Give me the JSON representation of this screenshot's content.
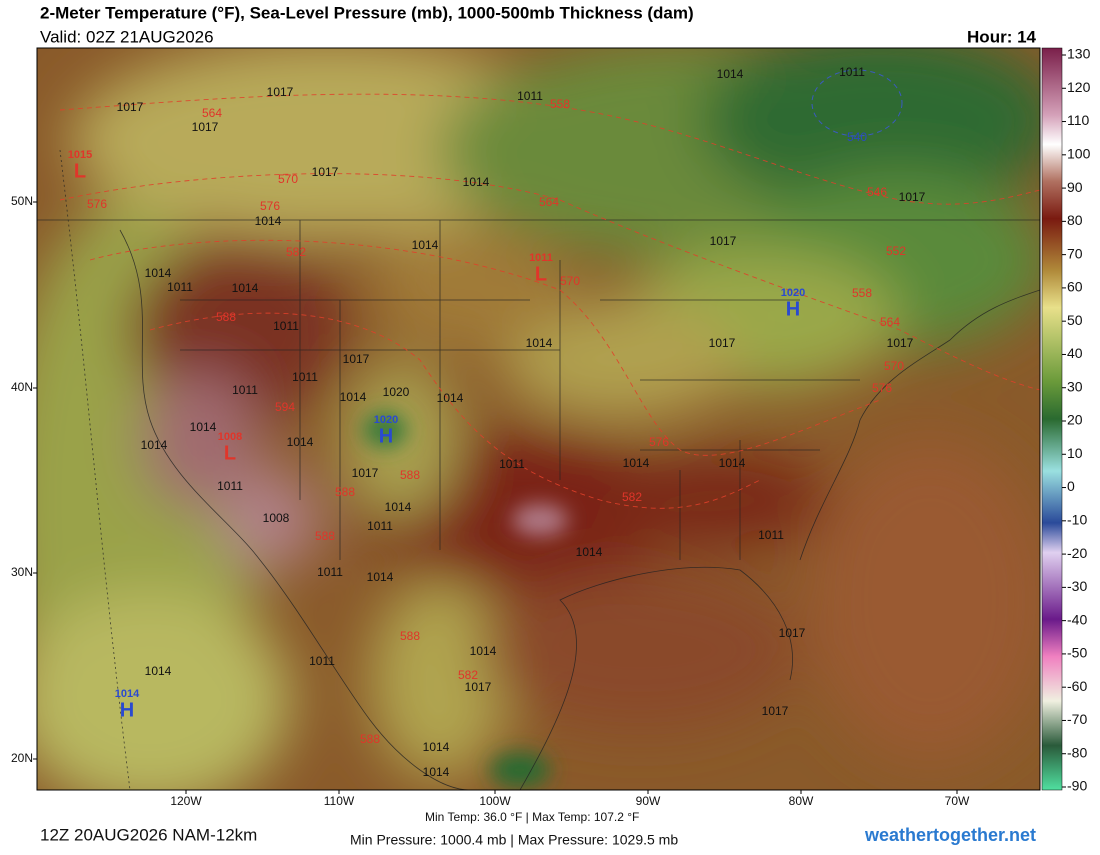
{
  "header": {
    "title": "2-Meter Temperature (°F), Sea-Level Pressure (mb), 1000-500mb Thickness (dam)",
    "valid": "Valid: 02Z 21AUG2026",
    "hour": "Hour: 14"
  },
  "map": {
    "latitude_labels": [
      "50N",
      "40N",
      "30N",
      "20N"
    ],
    "longitude_labels": [
      "120W",
      "110W",
      "100W",
      "90W",
      "80W",
      "70W"
    ],
    "isobar_labels": [
      "1017",
      "1017",
      "1017",
      "1011",
      "1014",
      "1011",
      "1017",
      "1014",
      "1014",
      "1014",
      "1017",
      "1017",
      "1014",
      "1011",
      "1014",
      "1011",
      "1014",
      "1017",
      "1017",
      "1017",
      "1011",
      "1011",
      "1014",
      "1020",
      "1014",
      "1014",
      "1014",
      "1014",
      "1017",
      "1011",
      "1014",
      "1014",
      "1011",
      "1014",
      "1011",
      "1008",
      "1014",
      "1011",
      "1011",
      "1014",
      "1014",
      "1017",
      "1017",
      "1011",
      "1014",
      "1017",
      "1014",
      "1014"
    ],
    "thickness_labels": [
      "564",
      "558",
      "570",
      "576",
      "576",
      "564",
      "582",
      "570",
      "588",
      "594",
      "588",
      "588",
      "588",
      "576",
      "582",
      "588",
      "582",
      "588",
      "546",
      "552",
      "558",
      "564",
      "570",
      "576",
      "540"
    ],
    "centers": [
      {
        "letter": "L",
        "pressure": "1015"
      },
      {
        "letter": "L",
        "pressure": "1011"
      },
      {
        "letter": "L",
        "pressure": "1008"
      },
      {
        "letter": "H",
        "pressure": "1020"
      },
      {
        "letter": "H",
        "pressure": "1020"
      },
      {
        "letter": "H",
        "pressure": "1014"
      }
    ]
  },
  "colorbar": {
    "ticks": [
      130,
      120,
      110,
      100,
      90,
      80,
      70,
      60,
      50,
      40,
      30,
      20,
      10,
      0,
      -10,
      -20,
      -30,
      -40,
      -50,
      -60,
      -70,
      -80,
      -90
    ]
  },
  "footer": {
    "run": "12Z 20AUG2026 NAM-12km",
    "temps": "Min Temp:  36.0 °F | Max Temp: 107.2 °F",
    "pressure": "Min Pressure: 1000.4 mb | Max Pressure: 1029.5 mb",
    "site": "weathertogether.net"
  }
}
